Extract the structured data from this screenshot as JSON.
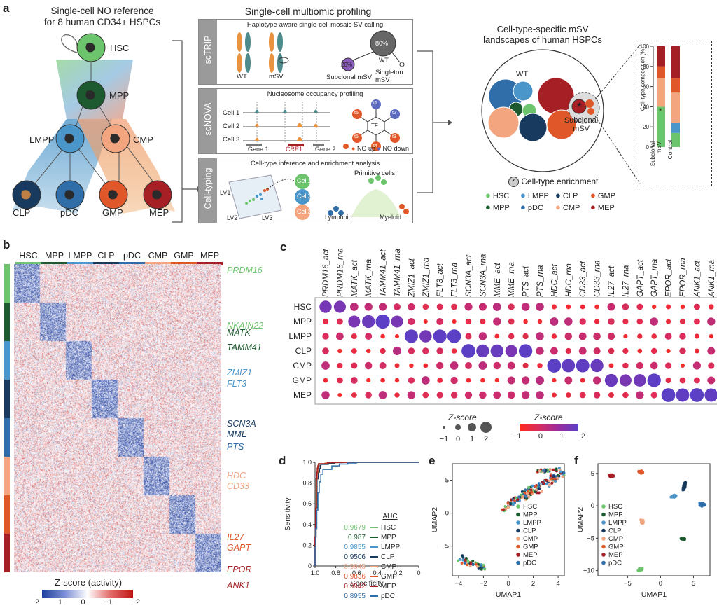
{
  "colors": {
    "HSC": "#6cc46c",
    "MPP": "#1e5a2f",
    "LMPP": "#4a95c9",
    "CLP": "#173a5e",
    "pDC": "#2f6ea8",
    "CMP": "#f2a57e",
    "GMP": "#e0582a",
    "MEP": "#a51f25",
    "gray_panel": "#9a9a9a",
    "orange": "#e9923f",
    "teal": "#4d8a8c"
  },
  "panel_a": {
    "label": "a",
    "ref_title": [
      "Single-cell NO reference",
      "for 8 human CD34+ HSPCs"
    ],
    "tree_nodes": [
      "HSC",
      "MPP",
      "LMPP",
      "CMP",
      "CLP",
      "pDC",
      "GMP",
      "MEP"
    ],
    "multiomic_title": "Single-cell multiomic profiling",
    "sctrip": {
      "side": "scTRIP",
      "title": "Haplotype-aware single-cell mosaic SV calling",
      "wt": "WT",
      "msv": "mSV",
      "pct80": "80%",
      "pct20": "20%",
      "wt2": "WT",
      "sub": "Subclonal mSV",
      "single": "Singleton mSV"
    },
    "scnova": {
      "side": "scNOVA",
      "title": "Nucleosome occupancy profiling",
      "cells": [
        "Cell 1",
        "Cell 2",
        "Cell 3"
      ],
      "genes": [
        "Gene 1",
        "CRE1",
        "Gene 2"
      ],
      "tf": "TF",
      "tnodes": [
        "t1",
        "t2",
        "t3",
        "t4",
        "t5",
        "t6"
      ],
      "no_up": "NO up",
      "no_down": "NO down"
    },
    "celltyping": {
      "side": "Cell-typing",
      "title": "Cell-type inference and enrichment analysis",
      "cells": [
        "Cell1",
        "Cell2",
        "Cell3"
      ],
      "lv": [
        "LV1",
        "LV2",
        "LV3"
      ],
      "primitive": "Primitive cells",
      "lymphoid": "Lymphoid",
      "myeloid": "Myeloid"
    },
    "landscape_title": [
      "Cell-type-specific mSV",
      "landscapes of human HSPCs"
    ],
    "wt": "WT",
    "subclonal": [
      "Subclonal",
      "mSV"
    ],
    "enrichment": "Cell-type enrichment",
    "legend": [
      "HSC",
      "LMPP",
      "CLP",
      "GMP",
      "MPP",
      "pDC",
      "CMP",
      "MEP"
    ],
    "bar": {
      "ylabel": "Cell-type composition (%)",
      "ticks": [
        "0",
        "20",
        "40",
        "60",
        "80",
        "100"
      ],
      "xlabels": [
        "Subclonal mSV",
        "Control"
      ]
    }
  },
  "panel_b": {
    "label": "b",
    "header": [
      "HSC",
      "MPP",
      "LMPP",
      "CLP",
      "pDC",
      "CMP",
      "GMP",
      "MEP"
    ],
    "genes": [
      "PRDM16",
      "NKAIN22",
      "MATK",
      "TAMM41",
      "ZMIZ1",
      "FLT3",
      "SCN3A",
      "MME",
      "PTS",
      "HDC",
      "CD33",
      "IL27",
      "GAPT",
      "EPOR",
      "ANK1"
    ],
    "gene_colors": [
      "HSC",
      "HSC",
      "MPP",
      "MPP",
      "LMPP",
      "LMPP",
      "CLP",
      "CLP",
      "pDC",
      "CMP",
      "CMP",
      "GMP",
      "GMP",
      "MEP",
      "MEP"
    ],
    "scale_title": "Z-score (activity)",
    "scale_ticks": [
      "2",
      "1",
      "0",
      "−1",
      "−2"
    ]
  },
  "panel_c": {
    "label": "c",
    "columns": [
      "PRDM16_act",
      "PRDM16_rna",
      "MATK_act",
      "MATK_rna",
      "TAMM41_act",
      "TAMM41_rna",
      "ZMIZ1_act",
      "ZMIZ1_rna",
      "FLT3_act",
      "FLT3_rna",
      "SCN3A_act",
      "SCN3A_rna",
      "MME_act",
      "MME_rna",
      "PTS_act",
      "PTS_rna",
      "HDC_act",
      "HDC_rna",
      "CD33_act",
      "CD33_rna",
      "IL27_act",
      "IL27_rna",
      "GAPT_act",
      "GAPT_rna",
      "EPOR_act",
      "EPOR_rna",
      "ANK1_act",
      "ANK1_rna"
    ],
    "rows": [
      "HSC",
      "MPP",
      "LMPP",
      "CLP",
      "CMP",
      "GMP",
      "MEP"
    ],
    "size_title": "Z-score",
    "size_ticks": [
      "−1",
      "0",
      "1",
      "2"
    ],
    "color_title": "Z-score",
    "color_ticks": [
      "−1",
      "0",
      "1",
      "2"
    ]
  },
  "chart_data": [
    {
      "type": "line",
      "panel": "d",
      "xlabel": "Specificity",
      "ylabel": "Sensitivity",
      "xlim": [
        1.0,
        0.0
      ],
      "ylim": [
        0,
        1.0
      ],
      "xticks": [
        "1.0",
        "0.8",
        "0.6",
        "0.4",
        "0.2",
        "0"
      ],
      "yticks": [
        "0",
        "0.2",
        "0.4",
        "0.6",
        "0.8",
        "1.0"
      ],
      "legend_title": "AUC",
      "series": [
        {
          "name": "HSC",
          "auc": "0.9679",
          "color": "#6cc46c"
        },
        {
          "name": "MPP",
          "auc": "0.987",
          "color": "#1e5a2f"
        },
        {
          "name": "LMPP",
          "auc": "0.9855",
          "color": "#4a95c9"
        },
        {
          "name": "CLP",
          "auc": "0.9506",
          "color": "#173a5e"
        },
        {
          "name": "CMP",
          "auc": "0.9945",
          "color": "#f2a57e"
        },
        {
          "name": "GMP",
          "auc": "0.9836",
          "color": "#e0582a"
        },
        {
          "name": "MEP",
          "auc": "0.9942",
          "color": "#a51f25"
        },
        {
          "name": "pDC",
          "auc": "0.8955",
          "color": "#2f6ea8"
        }
      ]
    },
    {
      "type": "scatter",
      "panel": "e",
      "xlabel": "UMAP1",
      "ylabel": "UMAP2",
      "xlim": [
        -4.5,
        4.5
      ],
      "ylim": [
        -9.5,
        7.5
      ],
      "xticks": [
        "−4",
        "−2",
        "0",
        "2",
        "4"
      ],
      "yticks": [
        "−5",
        "0",
        "5"
      ],
      "legend": [
        "HSC",
        "MPP",
        "LMPP",
        "CLP",
        "CMP",
        "GMP",
        "MEP",
        "pDC"
      ]
    },
    {
      "type": "scatter",
      "panel": "f",
      "xlabel": "UMAP1",
      "ylabel": "UMAP2",
      "xlim": [
        -9.5,
        7.5
      ],
      "ylim": [
        -10.8,
        6.5
      ],
      "xticks": [
        "−5",
        "0",
        "5"
      ],
      "yticks": [
        "−10",
        "−5",
        "0",
        "5"
      ],
      "legend": [
        "HSC",
        "MPP",
        "LMPP",
        "CLP",
        "CMP",
        "GMP",
        "MEP",
        "pDC"
      ]
    }
  ],
  "panel_d_label": "d",
  "panel_e_label": "e",
  "panel_f_label": "f"
}
